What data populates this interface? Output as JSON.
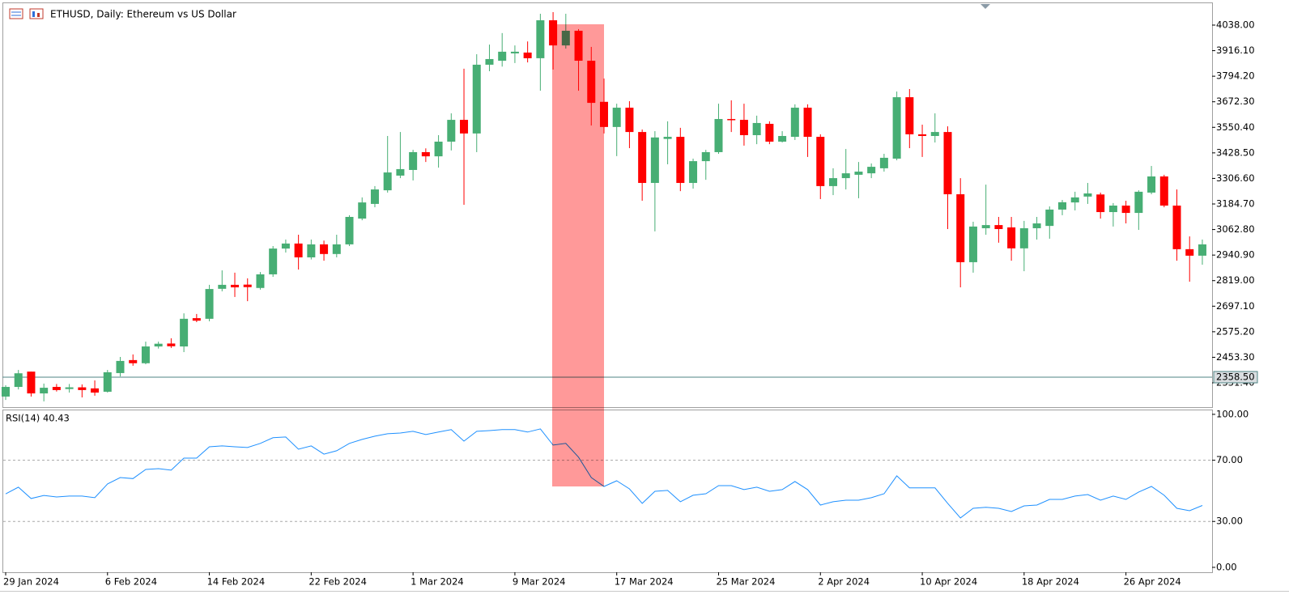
{
  "chart_data": [
    {
      "type": "candlestick",
      "title": "ETHUSD, Daily:  Ethereum vs US Dollar",
      "categories": [
        "29 Jan 2024",
        null,
        null,
        null,
        null,
        null,
        null,
        null,
        "6 Feb 2024",
        null,
        null,
        null,
        null,
        null,
        null,
        null,
        "14 Feb 2024",
        null,
        null,
        null,
        null,
        null,
        null,
        null,
        "22 Feb 2024",
        null,
        null,
        null,
        null,
        null,
        null,
        null,
        "1 Mar 2024",
        null,
        null,
        null,
        null,
        null,
        null,
        null,
        "9 Mar 2024",
        null,
        null,
        null,
        null,
        null,
        null,
        null,
        "17 Mar 2024",
        null,
        null,
        null,
        null,
        null,
        null,
        null,
        "25 Mar 2024",
        null,
        null,
        null,
        null,
        null,
        null,
        null,
        "2 Apr 2024",
        null,
        null,
        null,
        null,
        null,
        null,
        null,
        "10 Apr 2024",
        null,
        null,
        null,
        null,
        null,
        null,
        null,
        "18 Apr 2024",
        null,
        null,
        null,
        null,
        null,
        null,
        null,
        "26 Apr 2024",
        null,
        null,
        null,
        null,
        null,
        null
      ],
      "open": [
        2266,
        2312,
        2385,
        2281,
        2312,
        2302,
        2310,
        2305,
        2289,
        2378,
        2440,
        2425,
        2505,
        2519,
        2505,
        2640,
        2637,
        2780,
        2799,
        2800,
        2784,
        2849,
        2972,
        2996,
        2930,
        2992,
        2946,
        2992,
        3115,
        3185,
        3250,
        3320,
        3347,
        3432,
        3412,
        3482,
        3586,
        3521,
        3849,
        3868,
        3903,
        3907,
        3880,
        4061,
        3941,
        4011,
        3868,
        3672,
        3552,
        3644,
        3528,
        3285,
        3495,
        3505,
        3285,
        3389,
        3432,
        3590,
        3586,
        3513,
        3567,
        3482,
        3505,
        3644,
        3505,
        3270,
        3308,
        3324,
        3331,
        3355,
        3401,
        3694,
        3517,
        3509,
        3528,
        3231,
        2907,
        3069,
        3084,
        3073,
        2973,
        3069,
        3080,
        3158,
        3192,
        3220,
        3230,
        3146,
        3177,
        3142,
        3239,
        3316,
        3177,
        2969,
        2938
      ],
      "high": [
        2320,
        2393,
        2385,
        2328,
        2326,
        2326,
        2324,
        2343,
        2393,
        2455,
        2467,
        2528,
        2528,
        2544,
        2663,
        2660,
        2799,
        2868,
        2857,
        2830,
        2860,
        2984,
        3015,
        3038,
        3015,
        3010,
        3038,
        3131,
        3216,
        3270,
        3509,
        3528,
        3443,
        3450,
        3513,
        3617,
        3830,
        3899,
        3945,
        4000,
        3941,
        3960,
        4092,
        4100,
        4092,
        4019,
        3934,
        3783,
        3663,
        3675,
        3540,
        3532,
        3579,
        3548,
        3401,
        3443,
        3663,
        3679,
        3663,
        3606,
        3579,
        3532,
        3660,
        3660,
        3517,
        3355,
        3447,
        3385,
        3378,
        3424,
        3721,
        3733,
        3563,
        3617,
        3555,
        3308,
        3100,
        3277,
        3123,
        3123,
        3104,
        3123,
        3173,
        3204,
        3243,
        3285,
        3239,
        3189,
        3200,
        3250,
        3366,
        3324,
        3254,
        3030,
        3015
      ],
      "low": [
        2250,
        2300,
        2266,
        2243,
        2290,
        2285,
        2262,
        2270,
        2285,
        2362,
        2413,
        2420,
        2495,
        2498,
        2478,
        2621,
        2625,
        2768,
        2741,
        2721,
        2776,
        2837,
        2953,
        2872,
        2920,
        2914,
        2930,
        2984,
        3107,
        3169,
        3239,
        3308,
        3297,
        3385,
        3358,
        3440,
        3181,
        3432,
        3818,
        3840,
        3857,
        3860,
        3725,
        3826,
        3926,
        3725,
        3559,
        3521,
        3413,
        3451,
        3200,
        3054,
        3374,
        3246,
        3258,
        3300,
        3424,
        3528,
        3463,
        3470,
        3470,
        3478,
        3490,
        3409,
        3208,
        3227,
        3254,
        3212,
        3308,
        3339,
        3393,
        3451,
        3409,
        3478,
        3065,
        2787,
        2857,
        3038,
        3000,
        2914,
        2864,
        3015,
        3019,
        3131,
        3154,
        3185,
        3115,
        3077,
        3092,
        3061,
        3231,
        3169,
        2914,
        2814,
        2895
      ],
      "close": [
        2312,
        2377,
        2281,
        2308,
        2297,
        2310,
        2297,
        2285,
        2382,
        2436,
        2425,
        2505,
        2518,
        2506,
        2637,
        2628,
        2779,
        2799,
        2787,
        2788,
        2849,
        2972,
        2996,
        2930,
        2992,
        2946,
        2992,
        3123,
        3192,
        3254,
        3335,
        3351,
        3432,
        3412,
        3482,
        3586,
        3521,
        3849,
        3876,
        3911,
        3911,
        3880,
        4061,
        3941,
        4011,
        3868,
        3667,
        3552,
        3644,
        3528,
        3285,
        3502,
        3505,
        3285,
        3389,
        3432,
        3590,
        3586,
        3513,
        3571,
        3482,
        3509,
        3644,
        3505,
        3270,
        3308,
        3331,
        3339,
        3362,
        3405,
        3694,
        3517,
        3509,
        3528,
        3231,
        2907,
        3077,
        3084,
        3065,
        2973,
        3069,
        3092,
        3158,
        3193,
        3216,
        3235,
        3146,
        3177,
        3142,
        3243,
        3316,
        3177,
        2969,
        2938,
        2992
      ],
      "up_color": "#47ae74",
      "down_color": "#ff0000",
      "ylim": [
        2215.6,
        4138.4
      ],
      "yticks": [
        {
          "value": 2331.4,
          "label": "2331.40"
        },
        {
          "value": 2453.3,
          "label": "2453.30"
        },
        {
          "value": 2575.2,
          "label": "2575.20"
        },
        {
          "value": 2697.1,
          "label": "2697.10"
        },
        {
          "value": 2819,
          "label": "2819.00"
        },
        {
          "value": 2940.9,
          "label": "2940.90"
        },
        {
          "value": 3062.8,
          "label": "3062.80"
        },
        {
          "value": 3184.7,
          "label": "3184.70"
        },
        {
          "value": 3306.6,
          "label": "3306.60"
        },
        {
          "value": 3428.5,
          "label": "3428.50"
        },
        {
          "value": 3550.4,
          "label": "3550.40"
        },
        {
          "value": 3672.3,
          "label": "3672.30"
        },
        {
          "value": 3794.2,
          "label": "3794.20"
        },
        {
          "value": 3916.1,
          "label": "3916.10"
        },
        {
          "value": 4038,
          "label": "4038.00"
        }
      ],
      "price_line": {
        "value": 2358.5,
        "label": "2358.50"
      },
      "price_line_color": "#4f8585"
    },
    {
      "type": "line",
      "title": "RSI(14) 40.43",
      "values": [
        48,
        52.4,
        45,
        47,
        46,
        46.6,
        46.6,
        45.5,
        54.5,
        58.7,
        58,
        64,
        64.5,
        63.5,
        71.4,
        71.4,
        78.8,
        79.4,
        78.8,
        78.3,
        81,
        84.7,
        85.2,
        77.2,
        79.4,
        74,
        76.2,
        81,
        83.6,
        85.7,
        87.3,
        87.8,
        88.9,
        86.8,
        88.4,
        90,
        82.5,
        88.9,
        89.4,
        90,
        90,
        88.4,
        90.5,
        79.9,
        81,
        72,
        58.7,
        52.9,
        56.6,
        51.3,
        41.8,
        49.7,
        50.3,
        42.9,
        47.1,
        48.1,
        53.4,
        53.4,
        50.8,
        52.4,
        49.7,
        50.8,
        56.1,
        50.8,
        40.7,
        42.9,
        43.9,
        43.9,
        45.5,
        48.1,
        59.8,
        51.9,
        51.9,
        51.9,
        41.8,
        32.3,
        38.6,
        39.2,
        38.6,
        36.5,
        40.2,
        40.7,
        44.4,
        44.4,
        46.6,
        47.6,
        43.9,
        46.6,
        44.4,
        49.2,
        52.9,
        47.1,
        38.6,
        37,
        40.43
      ],
      "color": "#1e90ff",
      "ylim": [
        -3.2,
        102.6
      ],
      "yticks": [
        {
          "value": 0,
          "label": "0.00"
        },
        {
          "value": 30,
          "label": "30.00"
        },
        {
          "value": 70,
          "label": "70.00"
        },
        {
          "value": 100,
          "label": "100.00"
        }
      ],
      "levels": [
        30,
        70
      ]
    }
  ]
}
